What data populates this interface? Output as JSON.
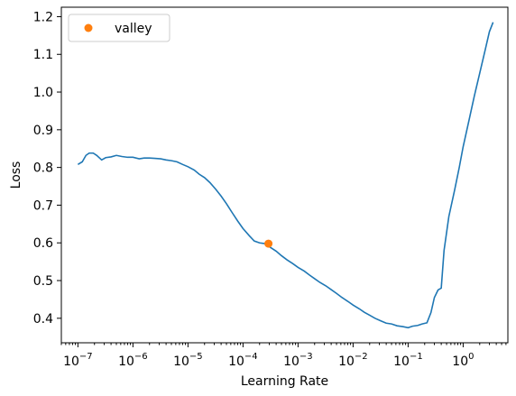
{
  "chart_data": {
    "type": "line",
    "xscale": "log",
    "xlabel": "Learning Rate",
    "ylabel": "Loss",
    "xlim": [
      5e-08,
      6.5
    ],
    "ylim": [
      0.335,
      1.225
    ],
    "grid": false,
    "legend_position": "top-left",
    "x_ticks": [
      {
        "value": 1e-07,
        "base": "10",
        "exp": "−7"
      },
      {
        "value": 1e-06,
        "base": "10",
        "exp": "−6"
      },
      {
        "value": 1e-05,
        "base": "10",
        "exp": "−5"
      },
      {
        "value": 0.0001,
        "base": "10",
        "exp": "−4"
      },
      {
        "value": 0.001,
        "base": "10",
        "exp": "−3"
      },
      {
        "value": 0.01,
        "base": "10",
        "exp": "−2"
      },
      {
        "value": 0.1,
        "base": "10",
        "exp": "−1"
      },
      {
        "value": 1,
        "base": "10",
        "exp": "0"
      }
    ],
    "y_ticks": [
      {
        "value": 0.4,
        "label": "0.4"
      },
      {
        "value": 0.5,
        "label": "0.5"
      },
      {
        "value": 0.6,
        "label": "0.6"
      },
      {
        "value": 0.7,
        "label": "0.7"
      },
      {
        "value": 0.8,
        "label": "0.8"
      },
      {
        "value": 0.9,
        "label": "0.9"
      },
      {
        "value": 1.0,
        "label": "1.0"
      },
      {
        "value": 1.1,
        "label": "1.1"
      },
      {
        "value": 1.2,
        "label": "1.2"
      }
    ],
    "series": [
      {
        "color": "#1f77b4",
        "points": [
          [
            1e-07,
            0.808
          ],
          [
            1.2e-07,
            0.815
          ],
          [
            1.4e-07,
            0.832
          ],
          [
            1.6e-07,
            0.838
          ],
          [
            1.9e-07,
            0.838
          ],
          [
            2.2e-07,
            0.832
          ],
          [
            2.7e-07,
            0.82
          ],
          [
            3.2e-07,
            0.826
          ],
          [
            4e-07,
            0.828
          ],
          [
            5e-07,
            0.832
          ],
          [
            6.3e-07,
            0.829
          ],
          [
            8e-07,
            0.827
          ],
          [
            1e-06,
            0.827
          ],
          [
            1.3e-06,
            0.823
          ],
          [
            1.6e-06,
            0.825
          ],
          [
            2e-06,
            0.825
          ],
          [
            2.5e-06,
            0.824
          ],
          [
            3.2e-06,
            0.823
          ],
          [
            4e-06,
            0.82
          ],
          [
            5e-06,
            0.818
          ],
          [
            6.3e-06,
            0.815
          ],
          [
            8e-06,
            0.808
          ],
          [
            1e-05,
            0.802
          ],
          [
            1.3e-05,
            0.793
          ],
          [
            1.6e-05,
            0.782
          ],
          [
            2e-05,
            0.773
          ],
          [
            2.5e-05,
            0.76
          ],
          [
            3.2e-05,
            0.742
          ],
          [
            4e-05,
            0.724
          ],
          [
            5e-05,
            0.704
          ],
          [
            6.3e-05,
            0.681
          ],
          [
            8e-05,
            0.658
          ],
          [
            0.0001,
            0.638
          ],
          [
            0.00013,
            0.619
          ],
          [
            0.00016,
            0.605
          ],
          [
            0.0002,
            0.6
          ],
          [
            0.00025,
            0.598
          ],
          [
            0.0003,
            0.59
          ],
          [
            0.0004,
            0.578
          ],
          [
            0.0005,
            0.566
          ],
          [
            0.00063,
            0.555
          ],
          [
            0.0008,
            0.545
          ],
          [
            0.001,
            0.535
          ],
          [
            0.0013,
            0.525
          ],
          [
            0.0016,
            0.515
          ],
          [
            0.002,
            0.505
          ],
          [
            0.0025,
            0.495
          ],
          [
            0.0032,
            0.486
          ],
          [
            0.004,
            0.476
          ],
          [
            0.005,
            0.466
          ],
          [
            0.0063,
            0.455
          ],
          [
            0.008,
            0.445
          ],
          [
            0.01,
            0.435
          ],
          [
            0.013,
            0.425
          ],
          [
            0.016,
            0.416
          ],
          [
            0.02,
            0.408
          ],
          [
            0.025,
            0.4
          ],
          [
            0.032,
            0.393
          ],
          [
            0.04,
            0.387
          ],
          [
            0.05,
            0.385
          ],
          [
            0.063,
            0.38
          ],
          [
            0.08,
            0.378
          ],
          [
            0.1,
            0.375
          ],
          [
            0.12,
            0.379
          ],
          [
            0.15,
            0.381
          ],
          [
            0.18,
            0.385
          ],
          [
            0.22,
            0.388
          ],
          [
            0.26,
            0.415
          ],
          [
            0.3,
            0.455
          ],
          [
            0.35,
            0.475
          ],
          [
            0.4,
            0.48
          ],
          [
            0.45,
            0.58
          ],
          [
            0.55,
            0.67
          ],
          [
            0.7,
            0.74
          ],
          [
            0.85,
            0.8
          ],
          [
            1.0,
            0.855
          ],
          [
            1.3,
            0.93
          ],
          [
            1.6,
            0.99
          ],
          [
            2.0,
            1.05
          ],
          [
            2.5,
            1.11
          ],
          [
            3.0,
            1.16
          ],
          [
            3.5,
            1.185
          ]
        ]
      },
      {
        "name": "valley",
        "type": "scatter",
        "color": "#ff7f0e",
        "points": [
          [
            0.00029,
            0.598
          ]
        ]
      }
    ],
    "legend": [
      {
        "label": "valley",
        "color": "#ff7f0e",
        "marker": "circle"
      }
    ]
  }
}
